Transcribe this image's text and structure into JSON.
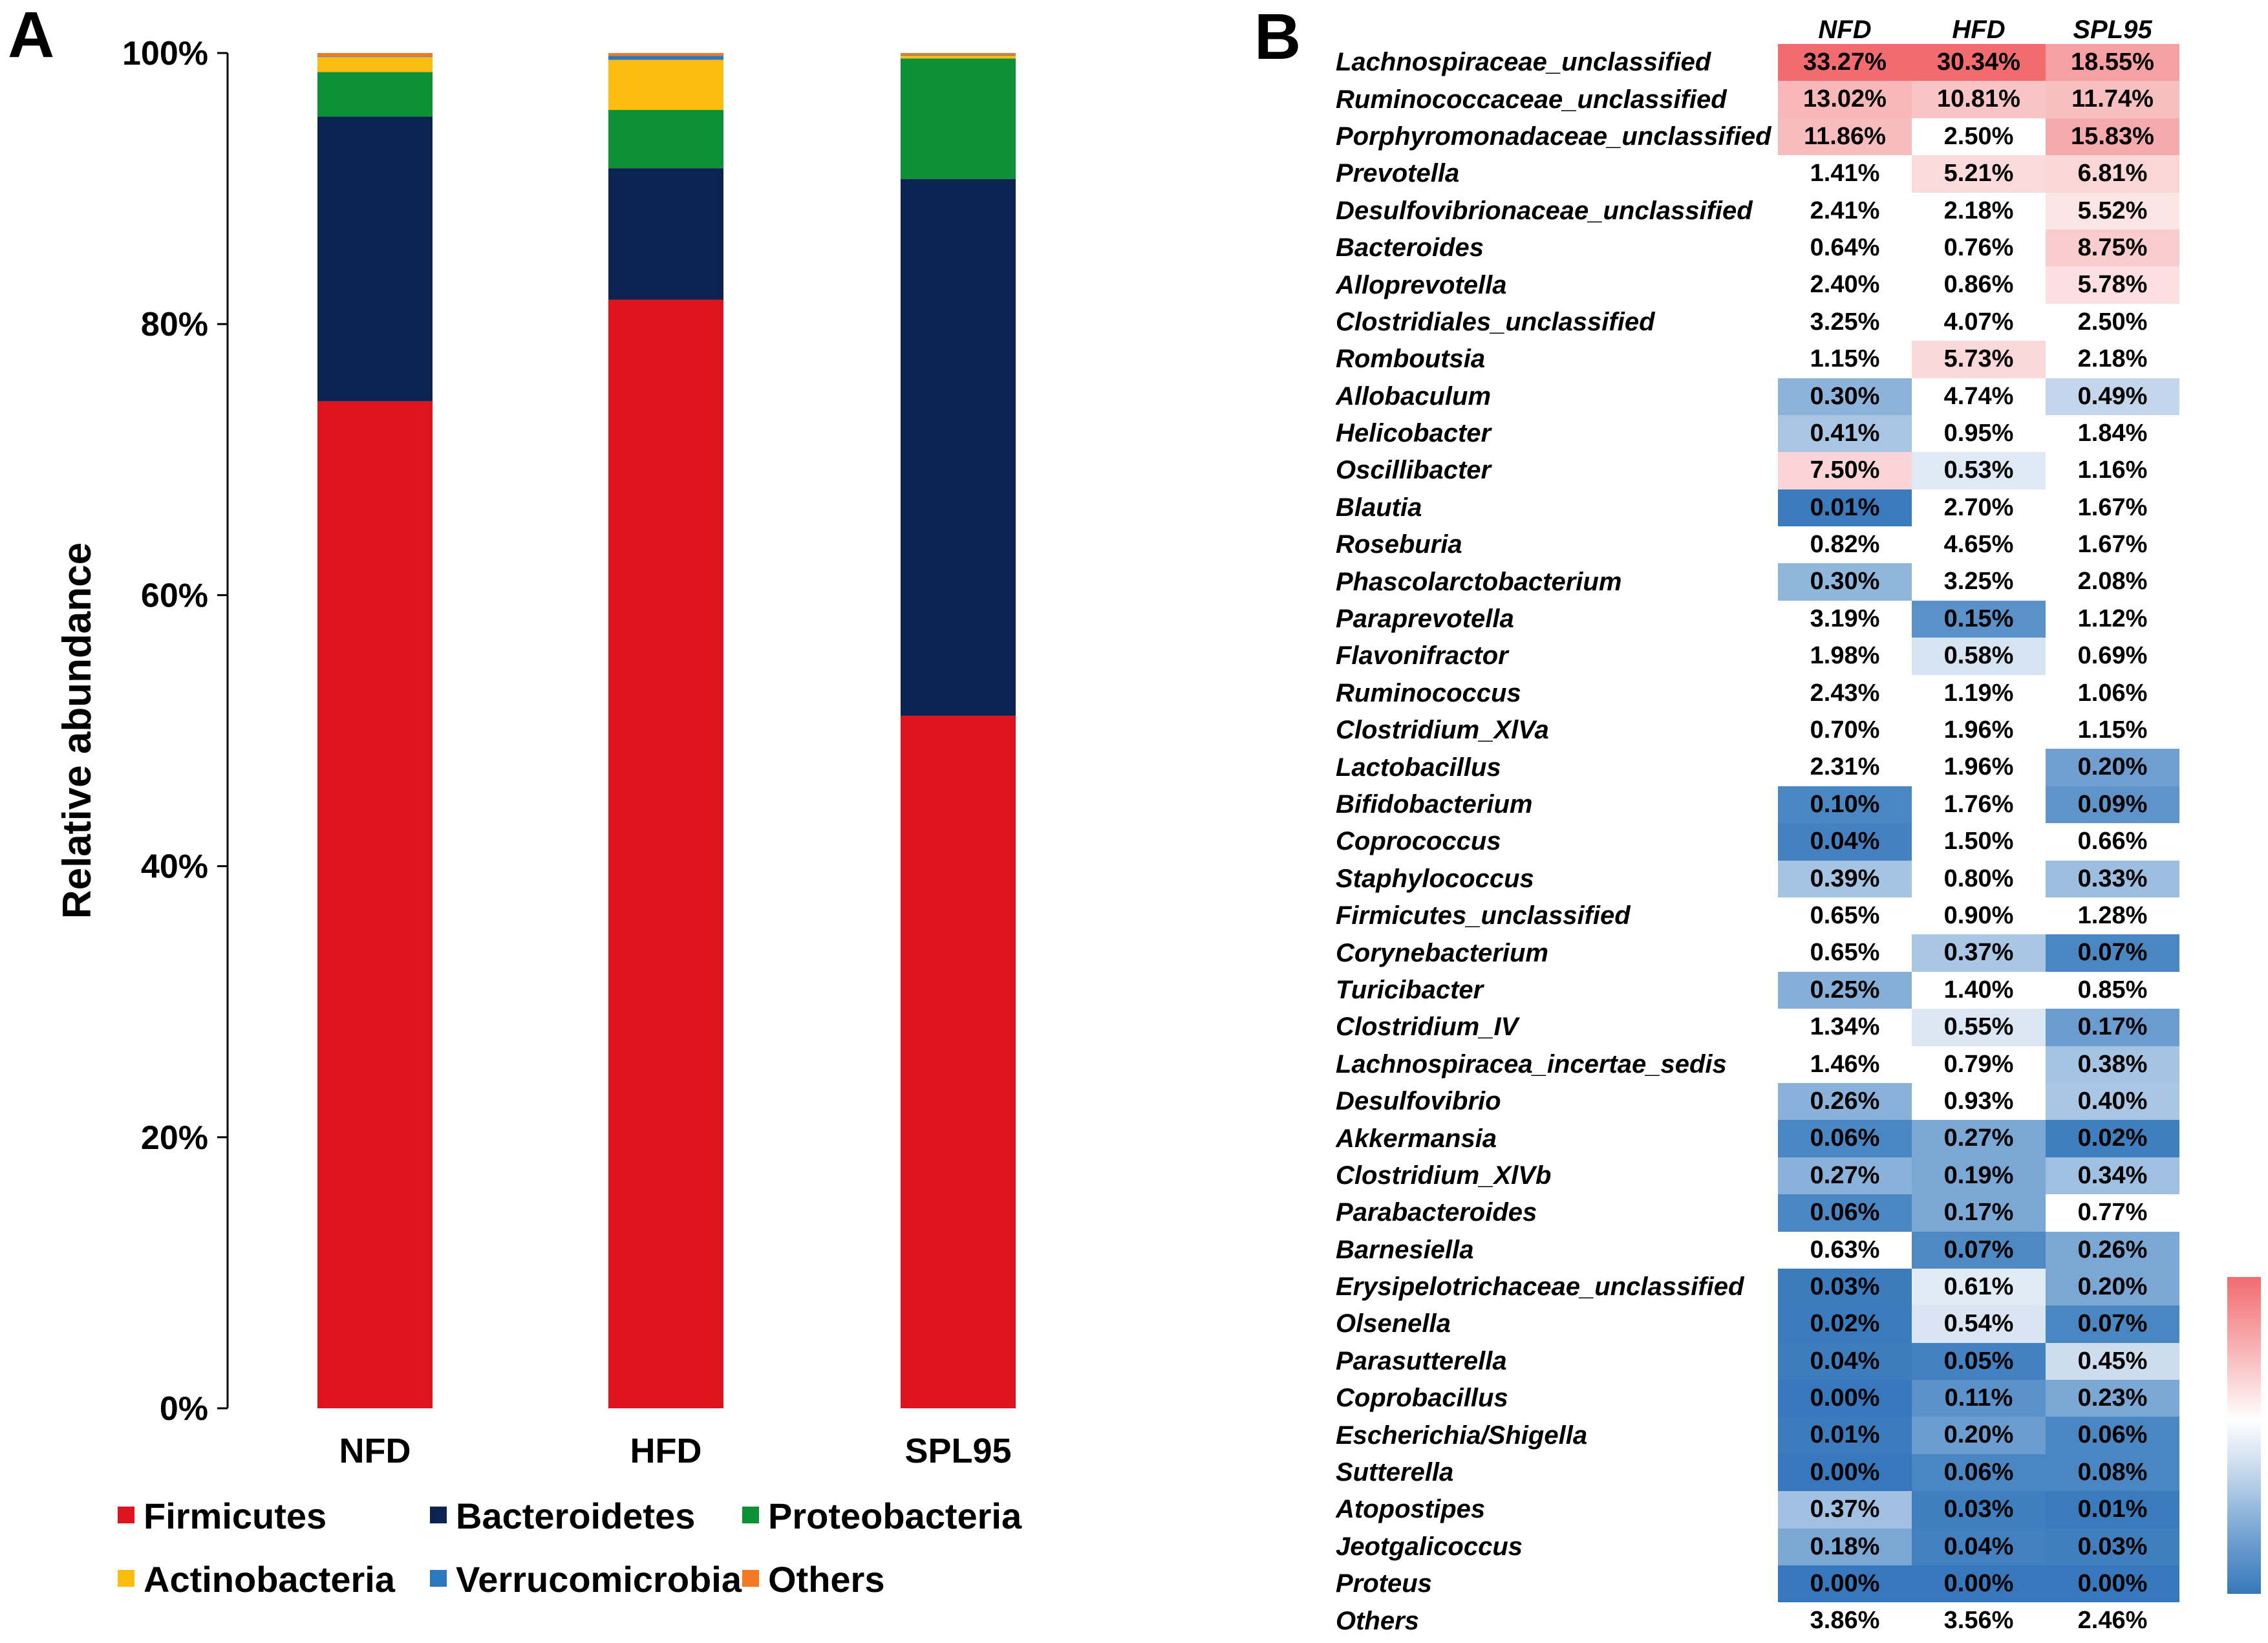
{
  "panel_labels": [
    "A",
    "B"
  ],
  "chart_data": [
    {
      "type": "bar",
      "stacked": true,
      "categories": [
        "NFD",
        "HFD",
        "SPL95"
      ],
      "ylabel": "Relative abundance",
      "xlabel": "",
      "ylim": [
        0,
        100
      ],
      "yticks": [
        "0%",
        "20%",
        "40%",
        "60%",
        "80%",
        "100%"
      ],
      "legend_position": "bottom",
      "series": [
        {
          "name": "Firmicutes",
          "color": "#dd141d",
          "values": [
            74.3,
            81.8,
            51.1
          ]
        },
        {
          "name": "Bacteroidetes",
          "color": "#0b2350",
          "values": [
            21.0,
            9.7,
            39.6
          ]
        },
        {
          "name": "Proteobacteria",
          "color": "#0c9136",
          "values": [
            3.3,
            4.3,
            8.9
          ]
        },
        {
          "name": "Actinobacteria",
          "color": "#fcbd10",
          "values": [
            1.1,
            3.7,
            0.2
          ]
        },
        {
          "name": "Verrucomicrobia",
          "color": "#2b78c0",
          "values": [
            0.05,
            0.3,
            0.05
          ]
        },
        {
          "name": "Others",
          "color": "#f37a22",
          "values": [
            0.25,
            0.2,
            0.15
          ]
        }
      ]
    },
    {
      "type": "heatmap",
      "columns": [
        "NFD",
        "HFD",
        "SPL95"
      ],
      "color_scale": {
        "high": "#f26b6f",
        "mid": "#ffffff",
        "low": "#3678bb"
      },
      "rows": [
        {
          "taxon": "Lachnospiraceae_unclassified",
          "values": [
            "33.27%",
            "30.34%",
            "18.55%"
          ]
        },
        {
          "taxon": "Ruminococcaceae_unclassified",
          "values": [
            "13.02%",
            "10.81%",
            "11.74%"
          ]
        },
        {
          "taxon": "Porphyromonadaceae_unclassified",
          "values": [
            "11.86%",
            "2.50%",
            "15.83%"
          ]
        },
        {
          "taxon": "Prevotella",
          "values": [
            "1.41%",
            "5.21%",
            "6.81%"
          ]
        },
        {
          "taxon": "Desulfovibrionaceae_unclassified",
          "values": [
            "2.41%",
            "2.18%",
            "5.52%"
          ]
        },
        {
          "taxon": "Bacteroides",
          "values": [
            "0.64%",
            "0.76%",
            "8.75%"
          ]
        },
        {
          "taxon": "Alloprevotella",
          "values": [
            "2.40%",
            "0.86%",
            "5.78%"
          ]
        },
        {
          "taxon": "Clostridiales_unclassified",
          "values": [
            "3.25%",
            "4.07%",
            "2.50%"
          ]
        },
        {
          "taxon": "Romboutsia",
          "values": [
            "1.15%",
            "5.73%",
            "2.18%"
          ]
        },
        {
          "taxon": "Allobaculum",
          "values": [
            "0.30%",
            "4.74%",
            "0.49%"
          ]
        },
        {
          "taxon": "Helicobacter",
          "values": [
            "0.41%",
            "0.95%",
            "1.84%"
          ]
        },
        {
          "taxon": "Oscillibacter",
          "values": [
            "7.50%",
            "0.53%",
            "1.16%"
          ]
        },
        {
          "taxon": "Blautia",
          "values": [
            "0.01%",
            "2.70%",
            "1.67%"
          ]
        },
        {
          "taxon": "Roseburia",
          "values": [
            "0.82%",
            "4.65%",
            "1.67%"
          ]
        },
        {
          "taxon": "Phascolarctobacterium",
          "values": [
            "0.30%",
            "3.25%",
            "2.08%"
          ]
        },
        {
          "taxon": "Paraprevotella",
          "values": [
            "3.19%",
            "0.15%",
            "1.12%"
          ]
        },
        {
          "taxon": "Flavonifractor",
          "values": [
            "1.98%",
            "0.58%",
            "0.69%"
          ]
        },
        {
          "taxon": "Ruminococcus",
          "values": [
            "2.43%",
            "1.19%",
            "1.06%"
          ]
        },
        {
          "taxon": "Clostridium_XlVa",
          "values": [
            "0.70%",
            "1.96%",
            "1.15%"
          ]
        },
        {
          "taxon": "Lactobacillus",
          "values": [
            "2.31%",
            "1.96%",
            "0.20%"
          ]
        },
        {
          "taxon": "Bifidobacterium",
          "values": [
            "0.10%",
            "1.76%",
            "0.09%"
          ]
        },
        {
          "taxon": "Coprococcus",
          "values": [
            "0.04%",
            "1.50%",
            "0.66%"
          ]
        },
        {
          "taxon": "Staphylococcus",
          "values": [
            "0.39%",
            "0.80%",
            "0.33%"
          ]
        },
        {
          "taxon": "Firmicutes_unclassified",
          "values": [
            "0.65%",
            "0.90%",
            "1.28%"
          ]
        },
        {
          "taxon": "Corynebacterium",
          "values": [
            "0.65%",
            "0.37%",
            "0.07%"
          ]
        },
        {
          "taxon": "Turicibacter",
          "values": [
            "0.25%",
            "1.40%",
            "0.85%"
          ]
        },
        {
          "taxon": "Clostridium_IV",
          "values": [
            "1.34%",
            "0.55%",
            "0.17%"
          ]
        },
        {
          "taxon": "Lachnospiracea_incertae_sedis",
          "values": [
            "1.46%",
            "0.79%",
            "0.38%"
          ]
        },
        {
          "taxon": "Desulfovibrio",
          "values": [
            "0.26%",
            "0.93%",
            "0.40%"
          ]
        },
        {
          "taxon": "Akkermansia",
          "values": [
            "0.06%",
            "0.27%",
            "0.02%"
          ]
        },
        {
          "taxon": "Clostridium_XlVb",
          "values": [
            "0.27%",
            "0.19%",
            "0.34%"
          ]
        },
        {
          "taxon": "Parabacteroides",
          "values": [
            "0.06%",
            "0.17%",
            "0.77%"
          ]
        },
        {
          "taxon": "Barnesiella",
          "values": [
            "0.63%",
            "0.07%",
            "0.26%"
          ]
        },
        {
          "taxon": "Erysipelotrichaceae_unclassified",
          "values": [
            "0.03%",
            "0.61%",
            "0.20%"
          ]
        },
        {
          "taxon": "Olsenella",
          "values": [
            "0.02%",
            "0.54%",
            "0.07%"
          ]
        },
        {
          "taxon": "Parasutterella",
          "values": [
            "0.04%",
            "0.05%",
            "0.45%"
          ]
        },
        {
          "taxon": "Coprobacillus",
          "values": [
            "0.00%",
            "0.11%",
            "0.23%"
          ]
        },
        {
          "taxon": "Escherichia/Shigella",
          "values": [
            "0.01%",
            "0.20%",
            "0.06%"
          ]
        },
        {
          "taxon": "Sutterella",
          "values": [
            "0.00%",
            "0.06%",
            "0.08%"
          ]
        },
        {
          "taxon": "Atopostipes",
          "values": [
            "0.37%",
            "0.03%",
            "0.01%"
          ]
        },
        {
          "taxon": "Jeotgalicoccus",
          "values": [
            "0.18%",
            "0.04%",
            "0.03%"
          ]
        },
        {
          "taxon": "Proteus",
          "values": [
            "0.00%",
            "0.00%",
            "0.00%"
          ]
        },
        {
          "taxon": "Others",
          "values": [
            "3.86%",
            "3.56%",
            "2.46%"
          ]
        }
      ],
      "cell_colors": [
        [
          "#f26b6f",
          "#f26b6f",
          "#f7a0a3"
        ],
        [
          "#f8b8ba",
          "#f9c4c6",
          "#f8bfc1"
        ],
        [
          "#f8bcbe",
          "#ffffff",
          "#f7aaad"
        ],
        [
          "#ffffff",
          "#fbdadb",
          "#fbd6d7"
        ],
        [
          "#ffffff",
          "#ffffff",
          "#fde5e6"
        ],
        [
          "#ffffff",
          "#ffffff",
          "#f9ccce"
        ],
        [
          "#ffffff",
          "#ffffff",
          "#fce0e1"
        ],
        [
          "#ffffff",
          "#ffffff",
          "#ffffff"
        ],
        [
          "#ffffff",
          "#fbd9da",
          "#ffffff"
        ],
        [
          "#8db3db",
          "#ffffff",
          "#c3d6ec"
        ],
        [
          "#a8c5e4",
          "#ffffff",
          "#ffffff"
        ],
        [
          "#fad4d6",
          "#dfe9f5",
          "#ffffff"
        ],
        [
          "#3a7bbd",
          "#ffffff",
          "#ffffff"
        ],
        [
          "#ffffff",
          "#ffffff",
          "#ffffff"
        ],
        [
          "#91b6dc",
          "#ffffff",
          "#ffffff"
        ],
        [
          "#ffffff",
          "#5a91c8",
          "#ffffff"
        ],
        [
          "#ffffff",
          "#d6e4f2",
          "#ffffff"
        ],
        [
          "#ffffff",
          "#ffffff",
          "#ffffff"
        ],
        [
          "#ffffff",
          "#ffffff",
          "#ffffff"
        ],
        [
          "#ffffff",
          "#ffffff",
          "#6f9fd0"
        ],
        [
          "#4a86c2",
          "#ffffff",
          "#5e94c9"
        ],
        [
          "#4580c0",
          "#ffffff",
          "#ffffff"
        ],
        [
          "#a5c3e3",
          "#ffffff",
          "#9bbde0"
        ],
        [
          "#ffffff",
          "#ffffff",
          "#ffffff"
        ],
        [
          "#ffffff",
          "#a9c6e4",
          "#4a86c2"
        ],
        [
          "#86afd8",
          "#ffffff",
          "#ffffff"
        ],
        [
          "#ffffff",
          "#dbe6f3",
          "#6b9ccf"
        ],
        [
          "#ffffff",
          "#ffffff",
          "#a5c3e3"
        ],
        [
          "#8ab1d9",
          "#ffffff",
          "#a9c6e4"
        ],
        [
          "#4a86c2",
          "#7aa7d4",
          "#3f7fbf"
        ],
        [
          "#8ab1d9",
          "#7aa7d4",
          "#a0c0e1"
        ],
        [
          "#4a86c2",
          "#7aa7d4",
          "#ffffff"
        ],
        [
          "#ffffff",
          "#4e89c4",
          "#7aa7d4"
        ],
        [
          "#3c7cbd",
          "#e1ebf6",
          "#7aa7d4"
        ],
        [
          "#3a7bbd",
          "#dae5f3",
          "#4a86c2"
        ],
        [
          "#3d7dbe",
          "#4580c0",
          "#cddcee"
        ],
        [
          "#3678bb",
          "#5a91c8",
          "#7aa7d4"
        ],
        [
          "#3a7bbd",
          "#6b9ccf",
          "#4a86c2"
        ],
        [
          "#3678bb",
          "#4a86c2",
          "#4a86c2"
        ],
        [
          "#a2c1e2",
          "#3f7fbf",
          "#3a7bbd"
        ],
        [
          "#7aa7d4",
          "#4280c0",
          "#3f7fbf"
        ],
        [
          "#3678bb",
          "#3678bb",
          "#3678bb"
        ],
        [
          "#ffffff",
          "#ffffff",
          "#ffffff"
        ]
      ]
    }
  ]
}
